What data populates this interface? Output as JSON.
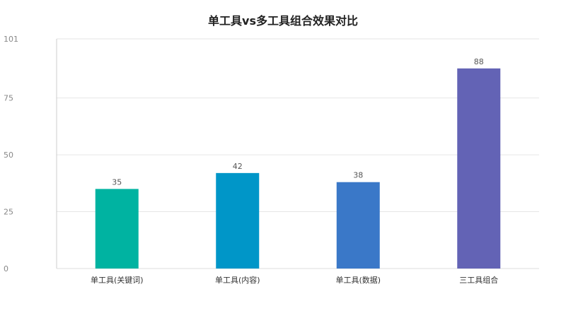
{
  "chart_data": {
    "type": "bar",
    "title": "单工具vs多工具组合效果对比",
    "xlabel": "",
    "ylabel": "",
    "categories": [
      "单工具(关键词)",
      "单工具(内容)",
      "单工具(数据)",
      "三工具组合"
    ],
    "values": [
      35,
      42,
      38,
      88
    ],
    "colors": [
      "#00b3a1",
      "#0096c8",
      "#3a78c8",
      "#6363b5"
    ],
    "ylim": [
      0,
      101
    ],
    "yticks": [
      0,
      25,
      50,
      75,
      101
    ],
    "grid": true,
    "legend": "none",
    "data_labels": true
  }
}
